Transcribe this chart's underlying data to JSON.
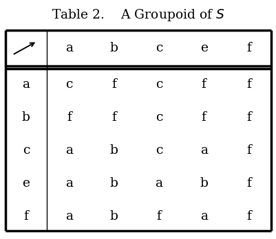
{
  "title_left": "Table 2.",
  "title_right": "A Groupoid of $S$",
  "title_fontsize": 13.5,
  "col_headers": [
    "a",
    "b",
    "c",
    "e",
    "f"
  ],
  "row_headers": [
    "a",
    "b",
    "c",
    "e",
    "f"
  ],
  "table_data": [
    [
      "c",
      "f",
      "c",
      "f",
      "f"
    ],
    [
      "f",
      "f",
      "c",
      "f",
      "f"
    ],
    [
      "a",
      "b",
      "c",
      "a",
      "f"
    ],
    [
      "a",
      "b",
      "a",
      "b",
      "f"
    ],
    [
      "a",
      "b",
      "f",
      "a",
      "f"
    ]
  ],
  "background_color": "#ffffff",
  "text_color": "#000000",
  "cell_fontsize": 13.5,
  "header_fontsize": 13.5,
  "arrow_symbol": "↗"
}
